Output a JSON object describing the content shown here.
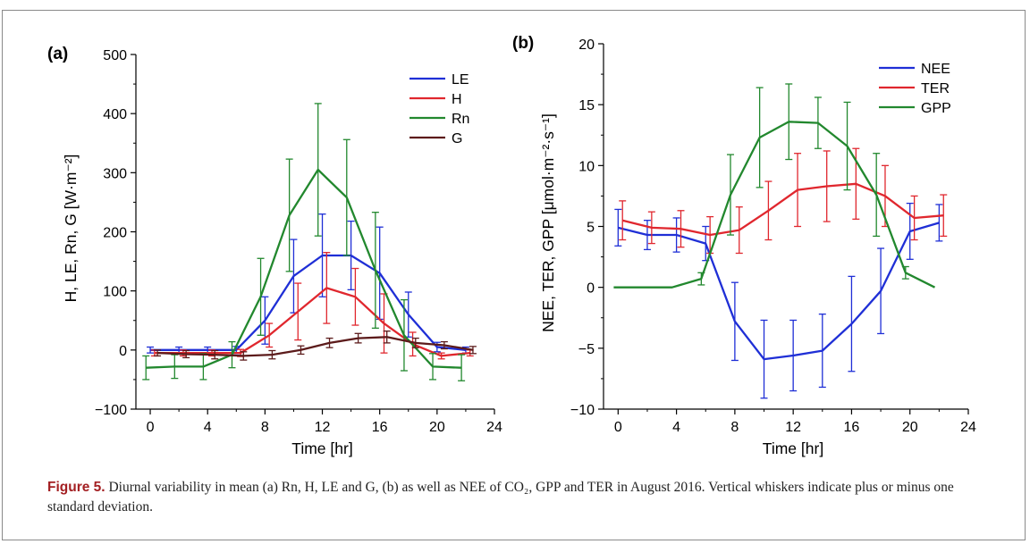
{
  "caption": {
    "label": "Figure 5.",
    "text": "Diurnal variability in mean (a) Rn, H, LE and G, (b) as well as NEE of CO₂, GPP and TER in August 2016. Vertical whiskers indicate plus or minus one standard deviation."
  },
  "chart_data": [
    {
      "type": "line",
      "panel_label": "(a)",
      "xlabel": "Time [hr]",
      "ylabel": "H, LE, Rn, G [W·m⁻²]",
      "xlim": [
        -1,
        24
      ],
      "ylim": [
        -100,
        500
      ],
      "xticks": [
        0,
        4,
        8,
        12,
        16,
        20,
        24
      ],
      "yticks": [
        -100,
        0,
        100,
        200,
        300,
        400,
        500
      ],
      "ytick_labels": [
        "−100",
        "0",
        "100",
        "200",
        "300",
        "400",
        "500"
      ],
      "legend_position": "top-right",
      "series": [
        {
          "name": "LE",
          "color": "#1f2fd6",
          "x": [
            0,
            2,
            4,
            6,
            8,
            10,
            12,
            14,
            16,
            18,
            20,
            22
          ],
          "y": [
            0,
            0,
            0,
            0,
            50,
            125,
            160,
            160,
            130,
            60,
            5,
            0
          ],
          "err": [
            5,
            5,
            5,
            6,
            40,
            62,
            70,
            58,
            78,
            38,
            8,
            5
          ]
        },
        {
          "name": "H",
          "color": "#e0272e",
          "x": [
            0.3,
            2.3,
            4.3,
            6.3,
            8.3,
            10.3,
            12.3,
            14.3,
            16.3,
            18.3,
            20.3,
            22.3
          ],
          "y": [
            -5,
            -5,
            -5,
            -5,
            25,
            65,
            105,
            90,
            45,
            10,
            -10,
            -5
          ],
          "err": [
            5,
            5,
            5,
            6,
            20,
            48,
            60,
            48,
            50,
            20,
            5,
            5
          ]
        },
        {
          "name": "Rn",
          "color": "#22882e",
          "x": [
            -0.3,
            1.7,
            3.7,
            5.7,
            7.7,
            9.7,
            11.7,
            13.7,
            15.7,
            17.7,
            19.7,
            21.7
          ],
          "y": [
            -30,
            -28,
            -28,
            -8,
            90,
            228,
            305,
            258,
            135,
            25,
            -28,
            -30
          ],
          "err": [
            20,
            20,
            22,
            22,
            65,
            95,
            112,
            98,
            98,
            60,
            22,
            22
          ]
        },
        {
          "name": "G",
          "color": "#5c1b1b",
          "x": [
            0.5,
            2.5,
            4.5,
            6.5,
            8.5,
            10.5,
            12.5,
            14.5,
            16.5,
            18.5,
            20.5,
            22.5
          ],
          "y": [
            -5,
            -7,
            -8,
            -10,
            -8,
            0,
            12,
            20,
            22,
            12,
            8,
            0
          ],
          "err": [
            5,
            6,
            7,
            7,
            7,
            7,
            8,
            8,
            10,
            8,
            6,
            6
          ]
        }
      ]
    },
    {
      "type": "line",
      "panel_label": "(b)",
      "xlabel": "Time [hr]",
      "ylabel": "NEE, TER, GPP [μmol·m⁻²·s⁻¹]",
      "xlim": [
        -1,
        24
      ],
      "ylim": [
        -10,
        20
      ],
      "xticks": [
        0,
        4,
        8,
        12,
        16,
        20,
        24
      ],
      "yticks": [
        -10,
        -5,
        0,
        5,
        10,
        15,
        20
      ],
      "ytick_labels": [
        "−10",
        "−5",
        "0",
        "5",
        "10",
        "15",
        "20"
      ],
      "legend_position": "top-right",
      "series": [
        {
          "name": "NEE",
          "color": "#1f2fd6",
          "x": [
            0,
            2,
            4,
            6,
            8,
            10,
            12,
            14,
            16,
            18,
            20,
            22
          ],
          "y": [
            4.9,
            4.3,
            4.3,
            3.6,
            -2.8,
            -5.9,
            -5.6,
            -5.2,
            -3.0,
            -0.3,
            4.6,
            5.3
          ],
          "err": [
            1.5,
            1.2,
            1.4,
            1.4,
            3.2,
            3.2,
            2.9,
            3.0,
            3.9,
            3.5,
            2.3,
            1.5
          ]
        },
        {
          "name": "TER",
          "color": "#e0272e",
          "x": [
            0.3,
            2.3,
            4.3,
            6.3,
            8.3,
            10.3,
            12.3,
            14.3,
            16.3,
            18.3,
            20.3,
            22.3
          ],
          "y": [
            5.5,
            4.9,
            4.8,
            4.3,
            4.7,
            6.3,
            8.0,
            8.3,
            8.5,
            7.5,
            5.7,
            5.9
          ],
          "err": [
            1.6,
            1.3,
            1.5,
            1.5,
            1.9,
            2.4,
            3.0,
            2.9,
            2.9,
            2.5,
            1.8,
            1.7
          ]
        },
        {
          "name": "GPP",
          "color": "#22882e",
          "x": [
            -0.3,
            1.7,
            3.7,
            5.7,
            7.7,
            9.7,
            11.7,
            13.7,
            15.7,
            17.7,
            19.7,
            21.7
          ],
          "y": [
            0,
            0,
            0,
            0.7,
            7.6,
            12.3,
            13.6,
            13.5,
            11.6,
            7.6,
            1.2,
            0
          ],
          "err": [
            0,
            0,
            0,
            0.5,
            3.3,
            4.1,
            3.1,
            2.1,
            3.6,
            3.4,
            0.5,
            0
          ]
        }
      ]
    }
  ]
}
